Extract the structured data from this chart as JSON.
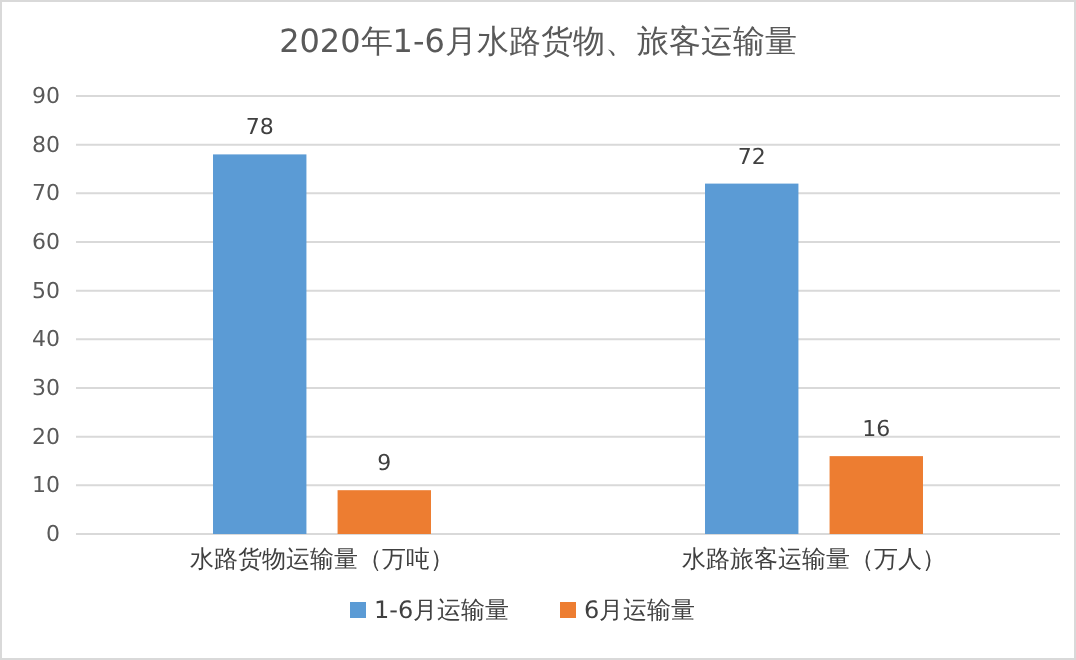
{
  "chart_data": {
    "type": "bar",
    "title": "2020年1-6月水路货物、旅客运输量",
    "categories": [
      "水路货物运输量（万吨）",
      "水路旅客运输量（万人）"
    ],
    "series": [
      {
        "name": "1-6月运输量",
        "color": "#5b9bd5",
        "values": [
          78,
          72
        ]
      },
      {
        "name": "6月运输量",
        "color": "#ed7d31",
        "values": [
          9,
          16
        ]
      }
    ],
    "ylim": [
      0,
      90
    ],
    "yticks": [
      0,
      10,
      20,
      30,
      40,
      50,
      60,
      70,
      80,
      90
    ],
    "grid": "y",
    "legend": "bottom",
    "data_labels": true
  }
}
